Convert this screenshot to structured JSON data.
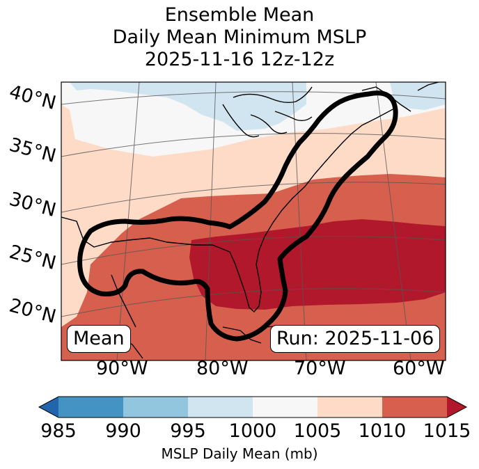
{
  "title": {
    "line1": "Ensemble Mean",
    "line2": "Daily Mean Minimum MSLP",
    "line3": "2025-11-16 12z-12z"
  },
  "map": {
    "lat_labels": [
      "40°N",
      "35°N",
      "30°N",
      "25°N",
      "20°N"
    ],
    "lon_labels": [
      "90°W",
      "80°W",
      "70°W",
      "60°W"
    ],
    "mean_label": "Mean",
    "run_label": "Run: 2025-11-06",
    "extent": {
      "lon_min": -97,
      "lon_max": -58,
      "lat_min": 15,
      "lat_max": 41
    },
    "field_bands_mb": [
      "995-1000",
      "1000-1005",
      "1005-1010",
      "1010-1015",
      "1015+"
    ],
    "contour": "black outline of ensemble low-pressure track region"
  },
  "colorbar": {
    "ticks": [
      "985",
      "990",
      "995",
      "1000",
      "1005",
      "1010",
      "1015"
    ],
    "label": "MSLP Daily Mean (mb)",
    "colors": [
      "#2166ac",
      "#4393c3",
      "#92c5de",
      "#d1e5f0",
      "#f7f7f7",
      "#fddbc7",
      "#d6604d",
      "#b2182b"
    ],
    "extend": "both"
  }
}
